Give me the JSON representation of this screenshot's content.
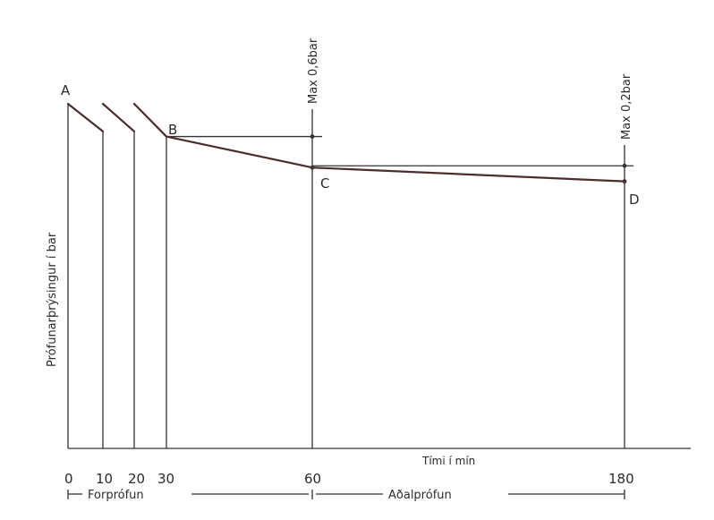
{
  "chart_data": {
    "type": "line",
    "title": "",
    "xlabel": "Tími í mín",
    "ylabel": "Prófunarþrýsingur í bar",
    "x_ticks": [
      "0",
      "10",
      "20",
      "30",
      "60",
      "180"
    ],
    "point_labels": {
      "A": "A",
      "B": "B",
      "C": "C",
      "D": "D"
    },
    "annotations": {
      "max_06": "Max 0,6bar",
      "max_02": "Max 0,2bar"
    },
    "phases": {
      "pre_test": "Forprófun",
      "main_test": "Aðalprófun"
    },
    "series": [
      {
        "values": [
          {
            "label": "A",
            "x": 0,
            "y": 1.0
          },
          {
            "x": 10,
            "y": 0.92
          },
          {
            "x": 20,
            "y": 0.92
          },
          {
            "label": "B",
            "x": 30,
            "y": 0.905
          },
          {
            "label": "C",
            "x": 60,
            "y": 0.815
          },
          {
            "label": "D",
            "x": 180,
            "y": 0.775
          }
        ]
      }
    ]
  },
  "colors": {
    "axis": "#333333",
    "curve": "#4a2e2e",
    "text": "#2b2b2b"
  }
}
